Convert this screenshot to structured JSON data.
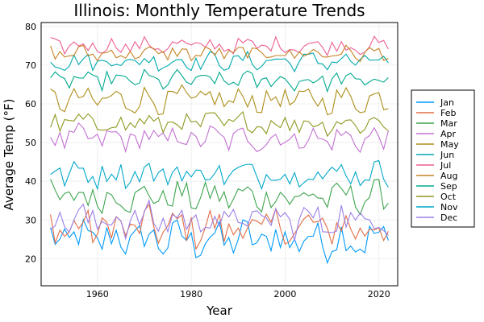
{
  "chart_data": {
    "type": "line",
    "title": "Illinois: Monthly Temperature Trends",
    "xlabel": "Year",
    "ylabel": "Average Temp (°F)",
    "xlim": [
      1948,
      2024
    ],
    "ylim": [
      13,
      81
    ],
    "xticks": [
      1960,
      1980,
      2000,
      2020
    ],
    "yticks": [
      20,
      30,
      40,
      50,
      60,
      70,
      80
    ],
    "grid": true,
    "legend_position": "right",
    "years": [
      1950,
      2022
    ],
    "series": [
      {
        "name": "Jan",
        "color": "#009AFA",
        "level": 25,
        "amp": 4.5
      },
      {
        "name": "Feb",
        "color": "#E26F46",
        "level": 28,
        "amp": 4.5
      },
      {
        "name": "Mar",
        "color": "#3EA44E",
        "level": 36,
        "amp": 3.5
      },
      {
        "name": "Apr",
        "color": "#C271D2",
        "level": 51,
        "amp": 3.0
      },
      {
        "name": "May",
        "color": "#AC8E18",
        "level": 61,
        "amp": 3.0
      },
      {
        "name": "Jun",
        "color": "#00A9AD",
        "level": 71,
        "amp": 2.0
      },
      {
        "name": "Jul",
        "color": "#ED5E93",
        "level": 75,
        "amp": 1.8
      },
      {
        "name": "Aug",
        "color": "#C68225",
        "level": 73,
        "amp": 1.8
      },
      {
        "name": "Sep",
        "color": "#00A98D",
        "level": 66,
        "amp": 2.2
      },
      {
        "name": "Oct",
        "color": "#8E971E",
        "level": 55,
        "amp": 2.5
      },
      {
        "name": "Nov",
        "color": "#00A8CB",
        "level": 42,
        "amp": 3.0
      },
      {
        "name": "Dec",
        "color": "#9B7FE8",
        "level": 30,
        "amp": 4.0
      }
    ]
  }
}
